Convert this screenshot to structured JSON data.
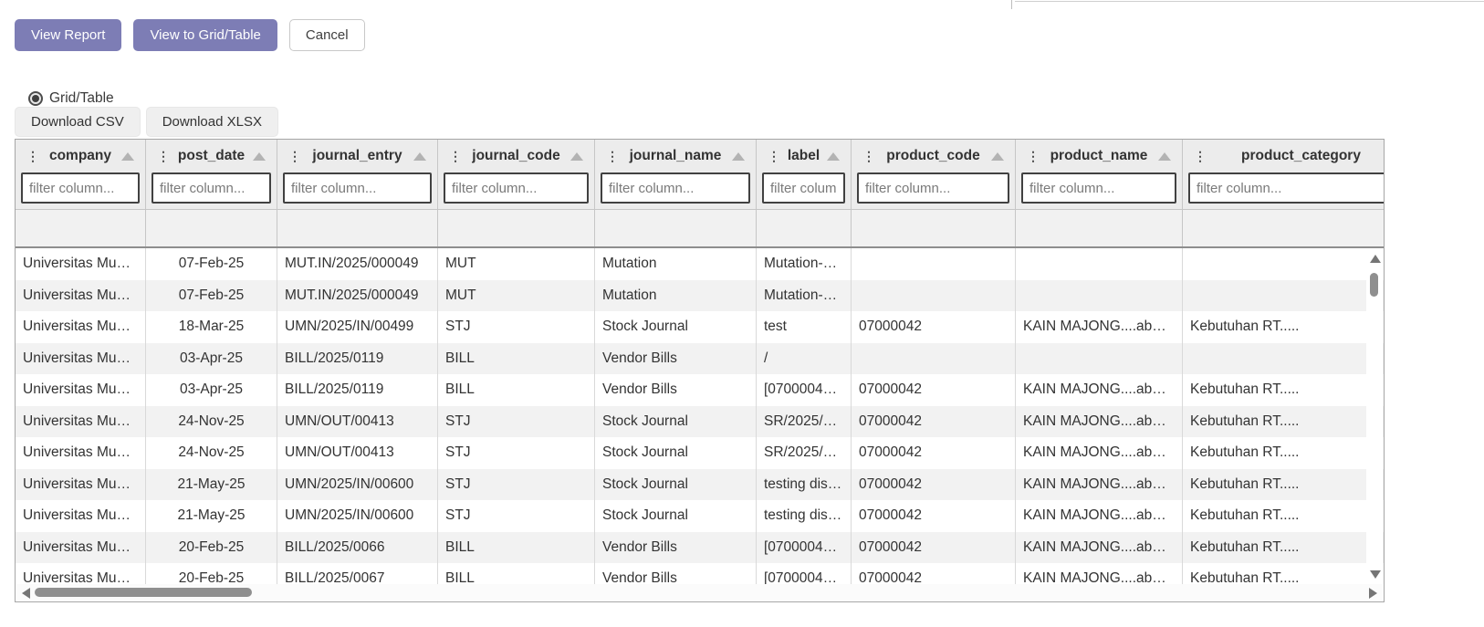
{
  "toolbar": {
    "view_report": "View Report",
    "view_grid_table": "View to Grid/Table",
    "cancel": "Cancel"
  },
  "view_mode": {
    "label": "Grid/Table",
    "selected": true
  },
  "downloads": {
    "csv": "Download CSV",
    "xlsx": "Download XLSX"
  },
  "colors": {
    "accent": "#7d7db5",
    "header_bg": "#ececec",
    "row_alt": "#f2f2f2",
    "filter_border": "#414141",
    "scroll_thumb": "#8f8f8f"
  },
  "grid": {
    "filter_placeholder": "filter column...",
    "columns": [
      {
        "key": "company",
        "label": "company"
      },
      {
        "key": "post_date",
        "label": "post_date"
      },
      {
        "key": "journal_entry",
        "label": "journal_entry"
      },
      {
        "key": "journal_code",
        "label": "journal_code"
      },
      {
        "key": "journal_name",
        "label": "journal_name"
      },
      {
        "key": "label",
        "label": "label"
      },
      {
        "key": "product_code",
        "label": "product_code"
      },
      {
        "key": "product_name",
        "label": "product_name"
      },
      {
        "key": "product_category",
        "label": "product_category"
      }
    ],
    "rows": [
      [
        "Universitas Mu…",
        "07-Feb-25",
        "MUT.IN/2025/000049",
        "MUT",
        "Mutation",
        "Mutation-…",
        "",
        "",
        ""
      ],
      [
        "Universitas Mu…",
        "07-Feb-25",
        "MUT.IN/2025/000049",
        "MUT",
        "Mutation",
        "Mutation-…",
        "",
        "",
        ""
      ],
      [
        "Universitas Mu…",
        "18-Mar-25",
        "UMN/2025/IN/00499",
        "STJ",
        "Stock Journal",
        "test",
        "07000042",
        "KAIN MAJONG....ab…",
        "Kebutuhan RT....."
      ],
      [
        "Universitas Mu…",
        "03-Apr-25",
        "BILL/2025/0119",
        "BILL",
        "Vendor Bills",
        "/",
        "",
        "",
        ""
      ],
      [
        "Universitas Mu…",
        "03-Apr-25",
        "BILL/2025/0119",
        "BILL",
        "Vendor Bills",
        "[0700004…",
        "07000042",
        "KAIN MAJONG....ab…",
        "Kebutuhan RT....."
      ],
      [
        "Universitas Mu…",
        "24-Nov-25",
        "UMN/OUT/00413",
        "STJ",
        "Stock Journal",
        "SR/2025/…",
        "07000042",
        "KAIN MAJONG....ab…",
        "Kebutuhan RT....."
      ],
      [
        "Universitas Mu…",
        "24-Nov-25",
        "UMN/OUT/00413",
        "STJ",
        "Stock Journal",
        "SR/2025/…",
        "07000042",
        "KAIN MAJONG....ab…",
        "Kebutuhan RT....."
      ],
      [
        "Universitas Mu…",
        "21-May-25",
        "UMN/2025/IN/00600",
        "STJ",
        "Stock Journal",
        "testing dis…",
        "07000042",
        "KAIN MAJONG....ab…",
        "Kebutuhan RT....."
      ],
      [
        "Universitas Mu…",
        "21-May-25",
        "UMN/2025/IN/00600",
        "STJ",
        "Stock Journal",
        "testing dis…",
        "07000042",
        "KAIN MAJONG....ab…",
        "Kebutuhan RT....."
      ],
      [
        "Universitas Mu…",
        "20-Feb-25",
        "BILL/2025/0066",
        "BILL",
        "Vendor Bills",
        "[0700004…",
        "07000042",
        "KAIN MAJONG....ab…",
        "Kebutuhan RT....."
      ],
      [
        "Universitas Mu…",
        "20-Feb-25",
        "BILL/2025/0067",
        "BILL",
        "Vendor Bills",
        "[0700004…",
        "07000042",
        "KAIN MAJONG....ab…",
        "Kebutuhan RT....."
      ]
    ]
  }
}
